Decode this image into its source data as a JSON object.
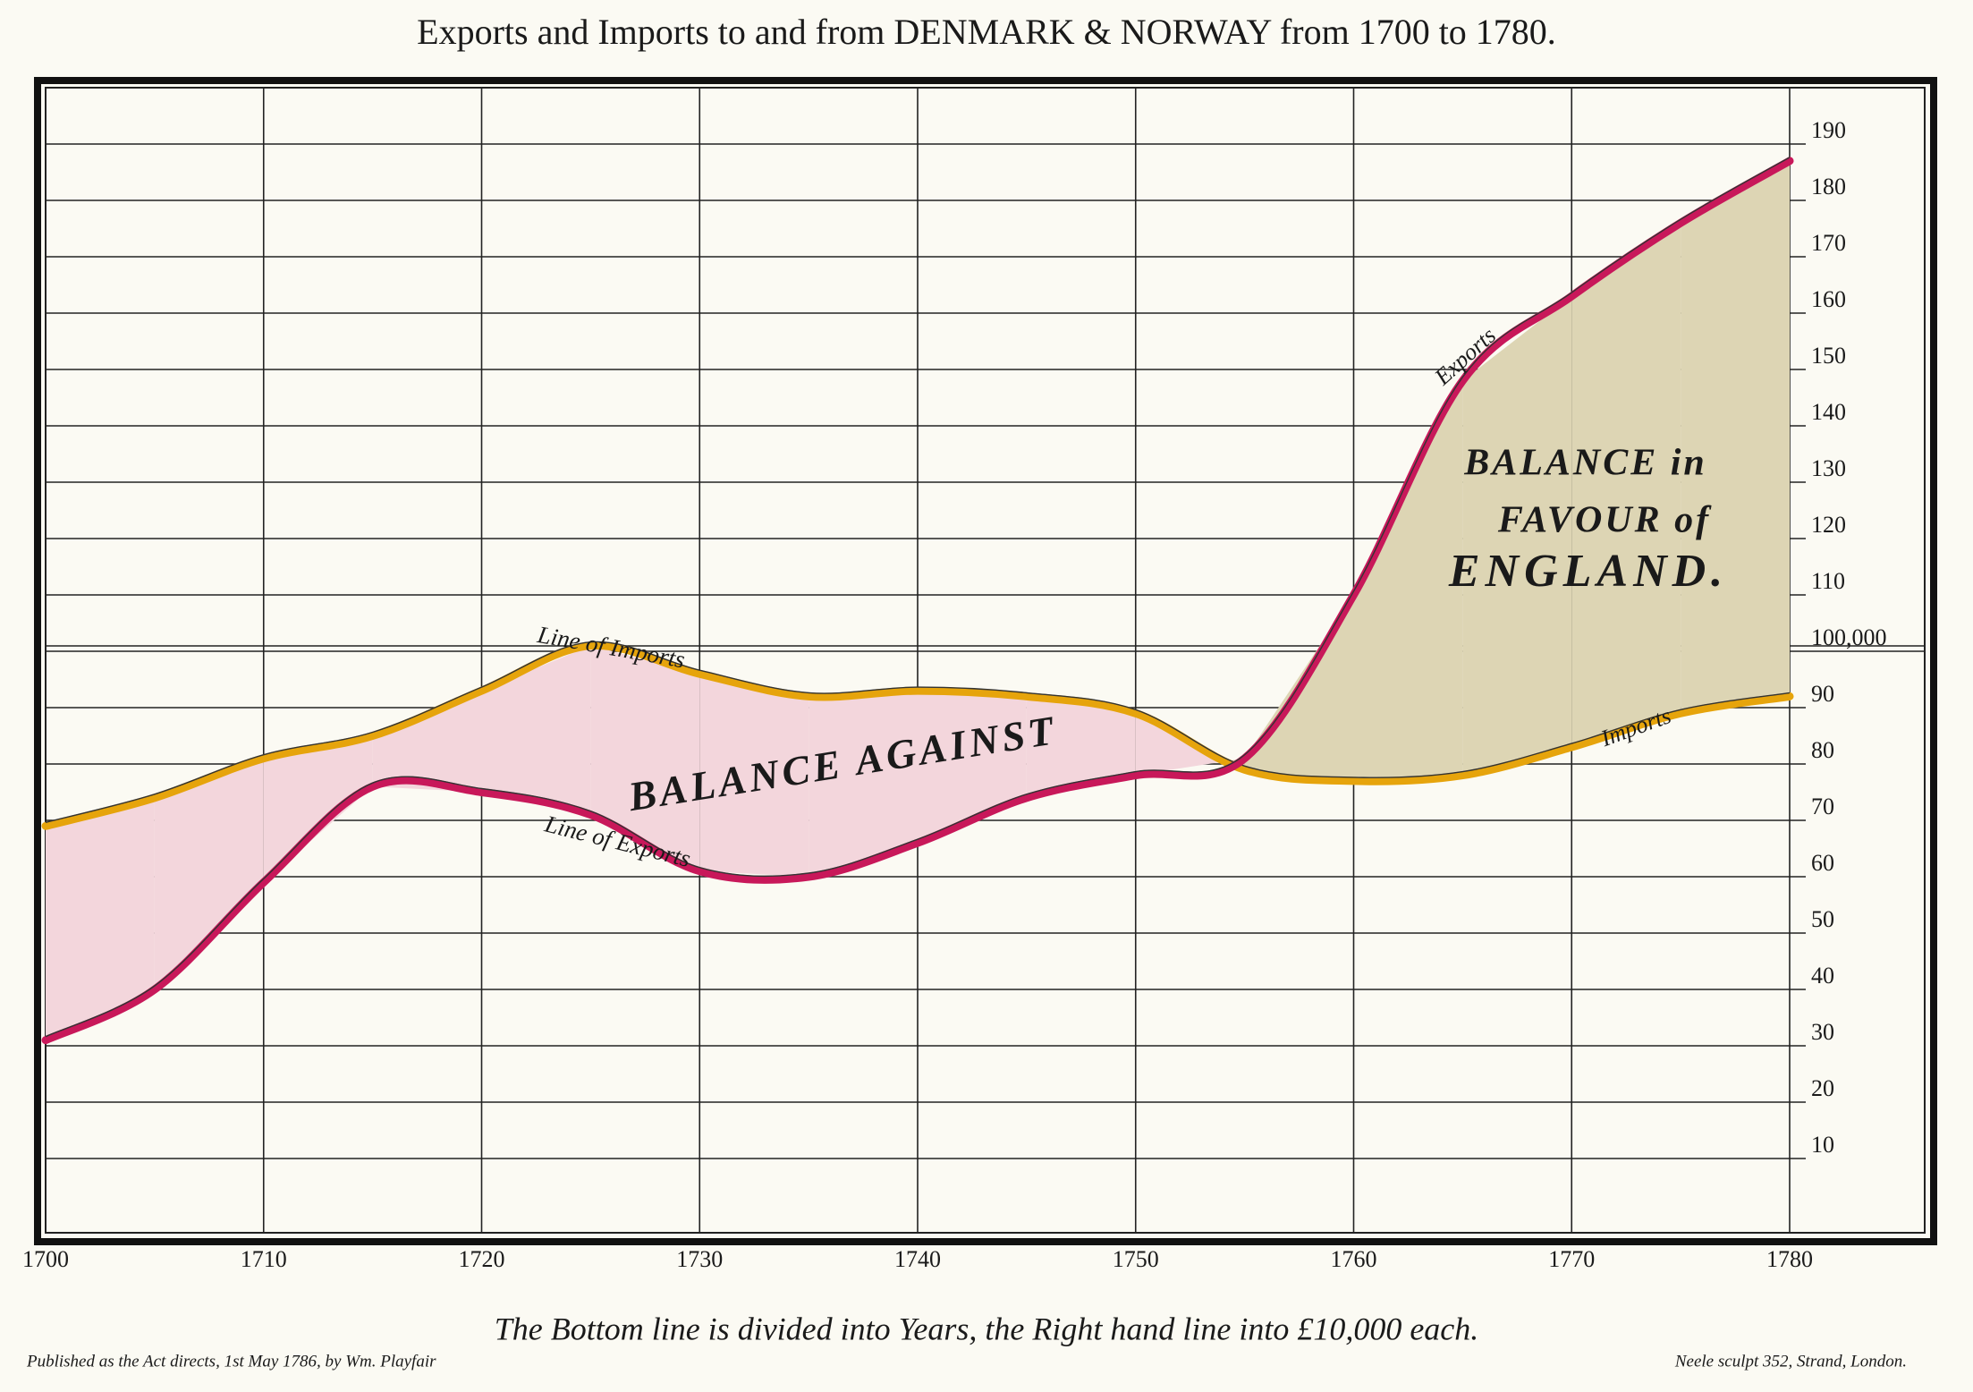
{
  "chart_data": {
    "type": "line",
    "title": "Exports and Imports to and from DENMARK & NORWAY from 1700 to 1780.",
    "footnote": "The Bottom line is divided into Years, the Right hand line into £10,000 each.",
    "credit_left": "Published as the Act directs, 1st May 1786, by Wm. Playfair",
    "credit_right": "Neele sculpt 352, Strand, London.",
    "annotations": [
      "Line of Imports",
      "Line of Exports",
      "BALANCE AGAINST",
      "Exports",
      "Imports",
      "BALANCE in",
      "FAVOUR of",
      "ENGLAND."
    ],
    "x": [
      1700,
      1705,
      1710,
      1715,
      1720,
      1725,
      1730,
      1735,
      1740,
      1745,
      1750,
      1755,
      1760,
      1765,
      1770,
      1775,
      1780
    ],
    "series": [
      {
        "name": "Imports",
        "color": "#e6a40c",
        "values": [
          69,
          74,
          81,
          85,
          93,
          101,
          96,
          92,
          93,
          92,
          89,
          79,
          77,
          78,
          83,
          89,
          92
        ]
      },
      {
        "name": "Exports",
        "color": "#c8185a",
        "values": [
          31,
          40,
          59,
          76,
          75,
          71,
          61,
          60,
          66,
          74,
          78,
          81,
          110,
          148,
          163,
          176,
          187
        ]
      }
    ],
    "balance_colors": {
      "against": "#f3d6dc",
      "favour": "#ddd5b4"
    },
    "xlim": [
      1700,
      1780
    ],
    "xticks": [
      1700,
      1710,
      1720,
      1730,
      1740,
      1750,
      1760,
      1770,
      1780
    ],
    "ylim": [
      0,
      200
    ],
    "yticks": [
      10,
      20,
      30,
      40,
      50,
      60,
      70,
      80,
      90,
      {
        "value": 100,
        "label": "100,000"
      },
      110,
      120,
      130,
      140,
      150,
      160,
      170,
      180,
      190
    ],
    "grid": true
  }
}
